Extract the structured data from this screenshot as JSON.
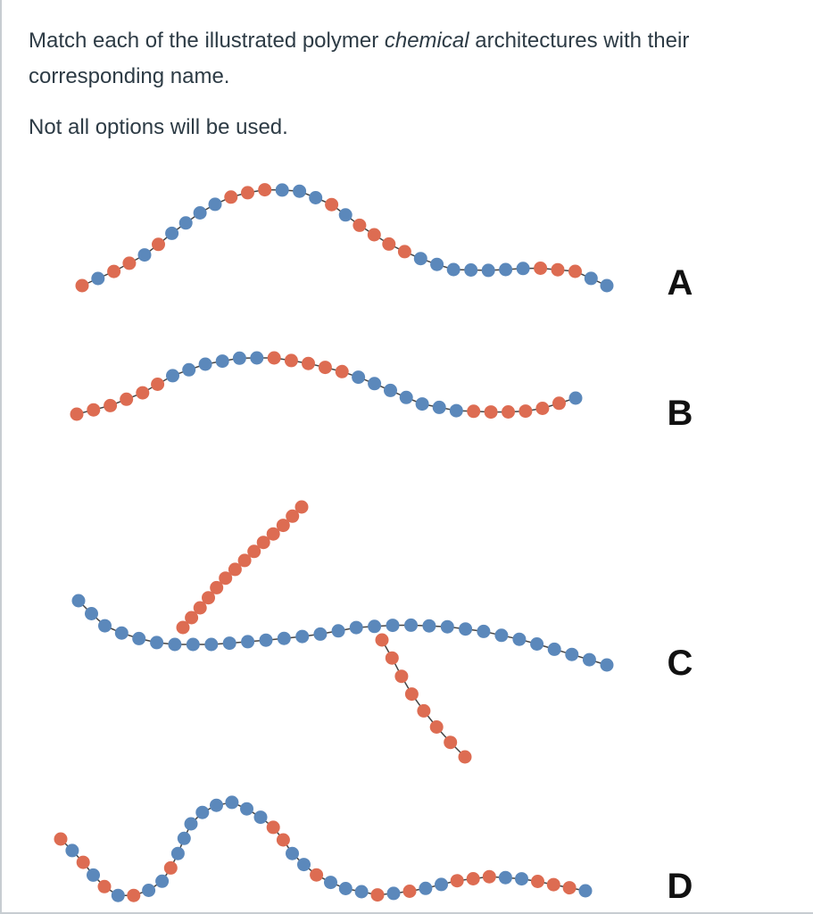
{
  "question": {
    "line1_before": "Match each of the illustrated polymer ",
    "line1_emph": "chemical",
    "line1_after": " architectures with their corresponding name.",
    "line2": "Not all options will be used."
  },
  "figure": {
    "labels": [
      "A",
      "B",
      "C",
      "D"
    ],
    "colors": {
      "blue": "#5b88bb",
      "red": "#dd6c52",
      "bond": "#444444"
    },
    "sequences": {
      "A": "RBRRBRBBBBRRRBBBRBRRRRBBBBBBBRRRBB",
      "B": "RRRRRRBBBBBBRRRRRBBBBBBBRRRRRRB",
      "C_main": "BBBBBBBBBBBBBBBBBBBBBBBBBBBBBBB",
      "C_branch1": "RRRRRRRRRRRRRR",
      "C_branch2": "RRRRRRRR",
      "D": "RBRBRBRBBRBBBBBBBBRRBBRBBBRBRBBRRRBBRRRB"
    }
  }
}
